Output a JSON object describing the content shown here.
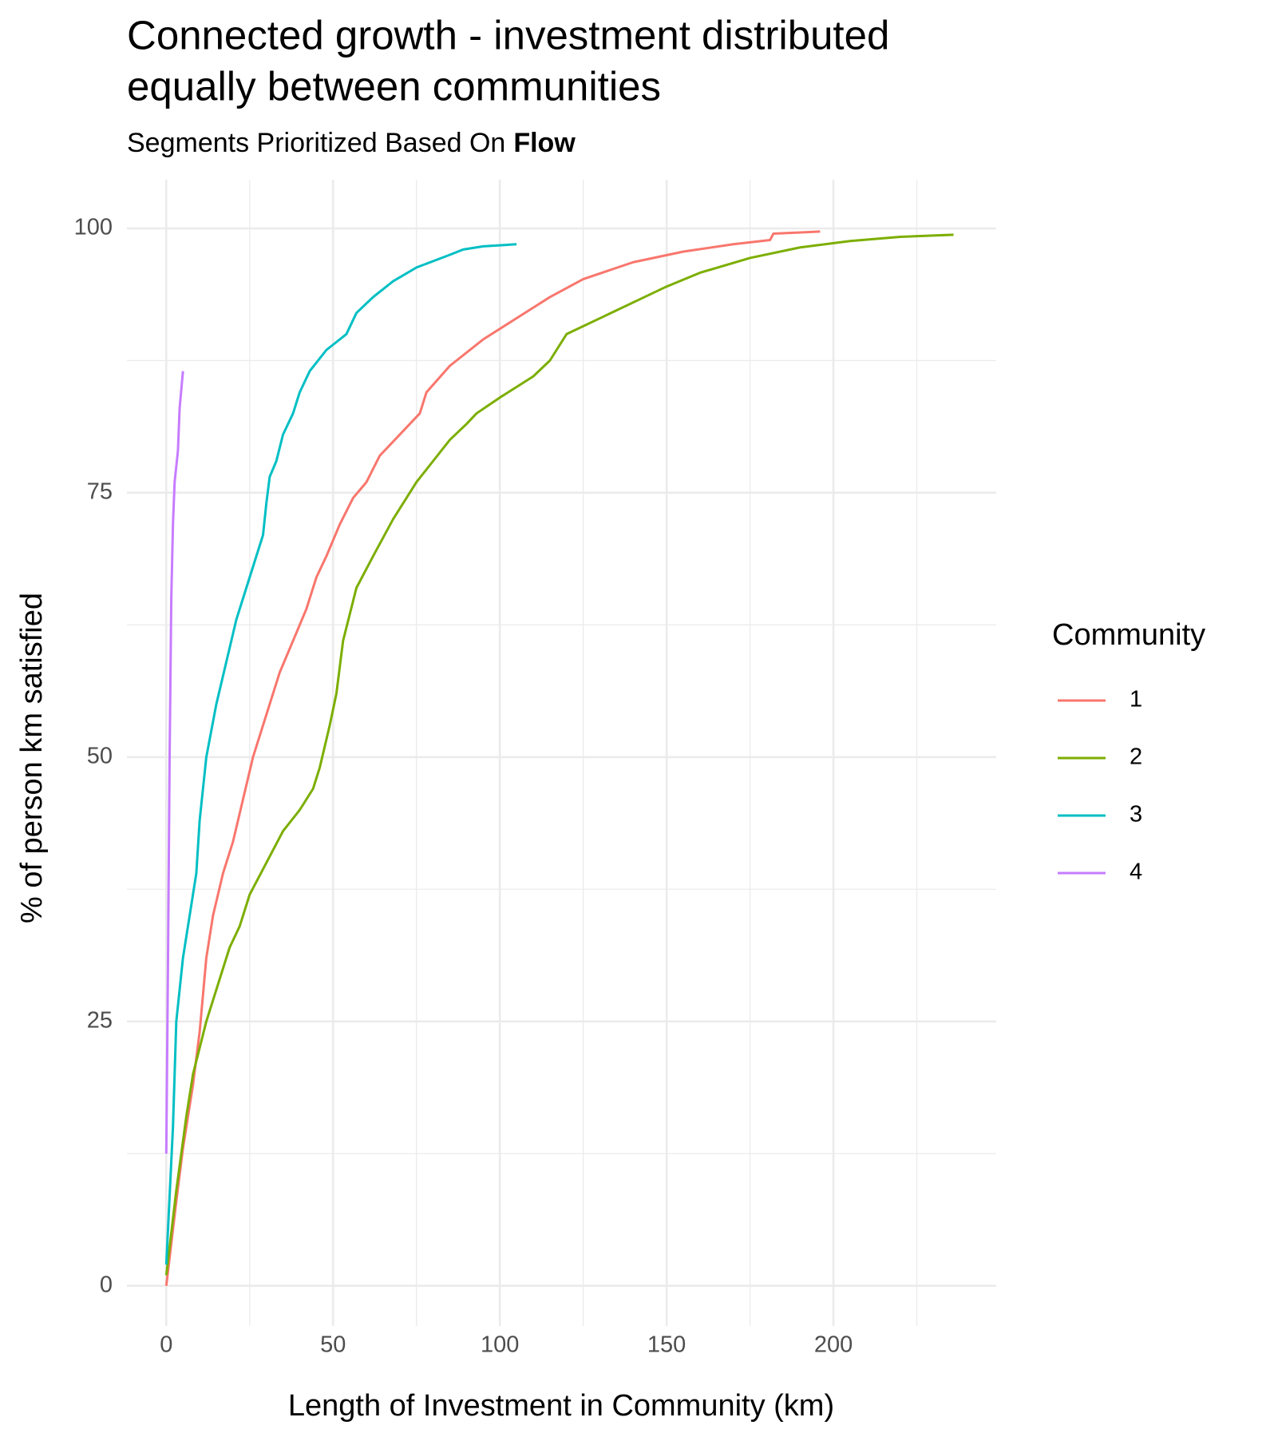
{
  "chart_data": {
    "type": "line",
    "title": [
      "Connected growth - investment distributed",
      "equally between communities"
    ],
    "subtitle": "Segments Prioritized Based On",
    "subtitle_emphasis": "Flow",
    "x_label": "Length of Investment in Community (km)",
    "y_label": "% of person km satisfied",
    "legend_title": "Community",
    "xlim": [
      -11.8,
      248.8
    ],
    "ylim": [
      -3.8,
      104.6
    ],
    "xticks": [
      0,
      50,
      100,
      150,
      200
    ],
    "yticks": [
      0,
      25,
      50,
      75,
      100
    ],
    "grid": true,
    "series": [
      {
        "name": "1",
        "color": "#F8766D",
        "x": [
          0,
          3,
          5,
          8,
          10,
          12,
          14,
          17,
          20,
          23,
          26,
          30,
          34,
          38,
          42,
          45,
          48,
          52,
          56,
          60,
          64,
          70,
          76,
          78,
          85,
          95,
          105,
          115,
          125,
          140,
          155,
          170,
          181,
          182,
          196
        ],
        "values": [
          0,
          8,
          13,
          19,
          24,
          31,
          35,
          39,
          42,
          46,
          50,
          54,
          58,
          61,
          64,
          67,
          69,
          72,
          74.5,
          76,
          78.5,
          80.5,
          82.5,
          84.5,
          87,
          89.5,
          91.5,
          93.5,
          95.2,
          96.8,
          97.8,
          98.5,
          98.9,
          99.5,
          99.7
        ]
      },
      {
        "name": "2",
        "color": "#7CAE00",
        "x": [
          0,
          3,
          6,
          8,
          12,
          16,
          19,
          22,
          25,
          30,
          35,
          40,
          44,
          46,
          49,
          51,
          53,
          57,
          62,
          68,
          75,
          80,
          85,
          90,
          93,
          100,
          110,
          115,
          118,
          120,
          130,
          140,
          150,
          160,
          175,
          190,
          205,
          220,
          236
        ],
        "values": [
          1,
          9,
          16,
          20,
          25,
          29,
          32,
          34,
          37,
          40,
          43,
          45,
          47,
          49,
          53,
          56,
          61,
          66,
          69,
          72.5,
          76,
          78,
          80,
          81.5,
          82.5,
          84,
          86,
          87.5,
          89,
          90,
          91.5,
          93,
          94.5,
          95.8,
          97.2,
          98.2,
          98.8,
          99.2,
          99.4
        ]
      },
      {
        "name": "3",
        "color": "#00BFC4",
        "x": [
          0,
          2,
          3,
          5,
          7,
          9,
          10,
          12,
          15,
          18,
          21,
          24,
          26,
          29,
          30,
          31,
          33,
          35,
          38,
          40,
          43,
          48,
          54,
          57,
          62,
          68,
          75,
          85,
          89,
          95,
          105
        ],
        "values": [
          2,
          15,
          25,
          31,
          35,
          39,
          44,
          50,
          55,
          59,
          63,
          66,
          68,
          71,
          74,
          76.5,
          78,
          80.5,
          82.5,
          84.5,
          86.5,
          88.5,
          90,
          92,
          93.5,
          95,
          96.3,
          97.5,
          98,
          98.3,
          98.5
        ]
      },
      {
        "name": "4",
        "color": "#C77CFF",
        "x": [
          0,
          0.5,
          1,
          1.5,
          2,
          2.5,
          3.5,
          4,
          5
        ],
        "values": [
          12.5,
          30,
          50,
          65,
          72,
          76,
          79,
          83,
          86.5
        ]
      }
    ]
  }
}
